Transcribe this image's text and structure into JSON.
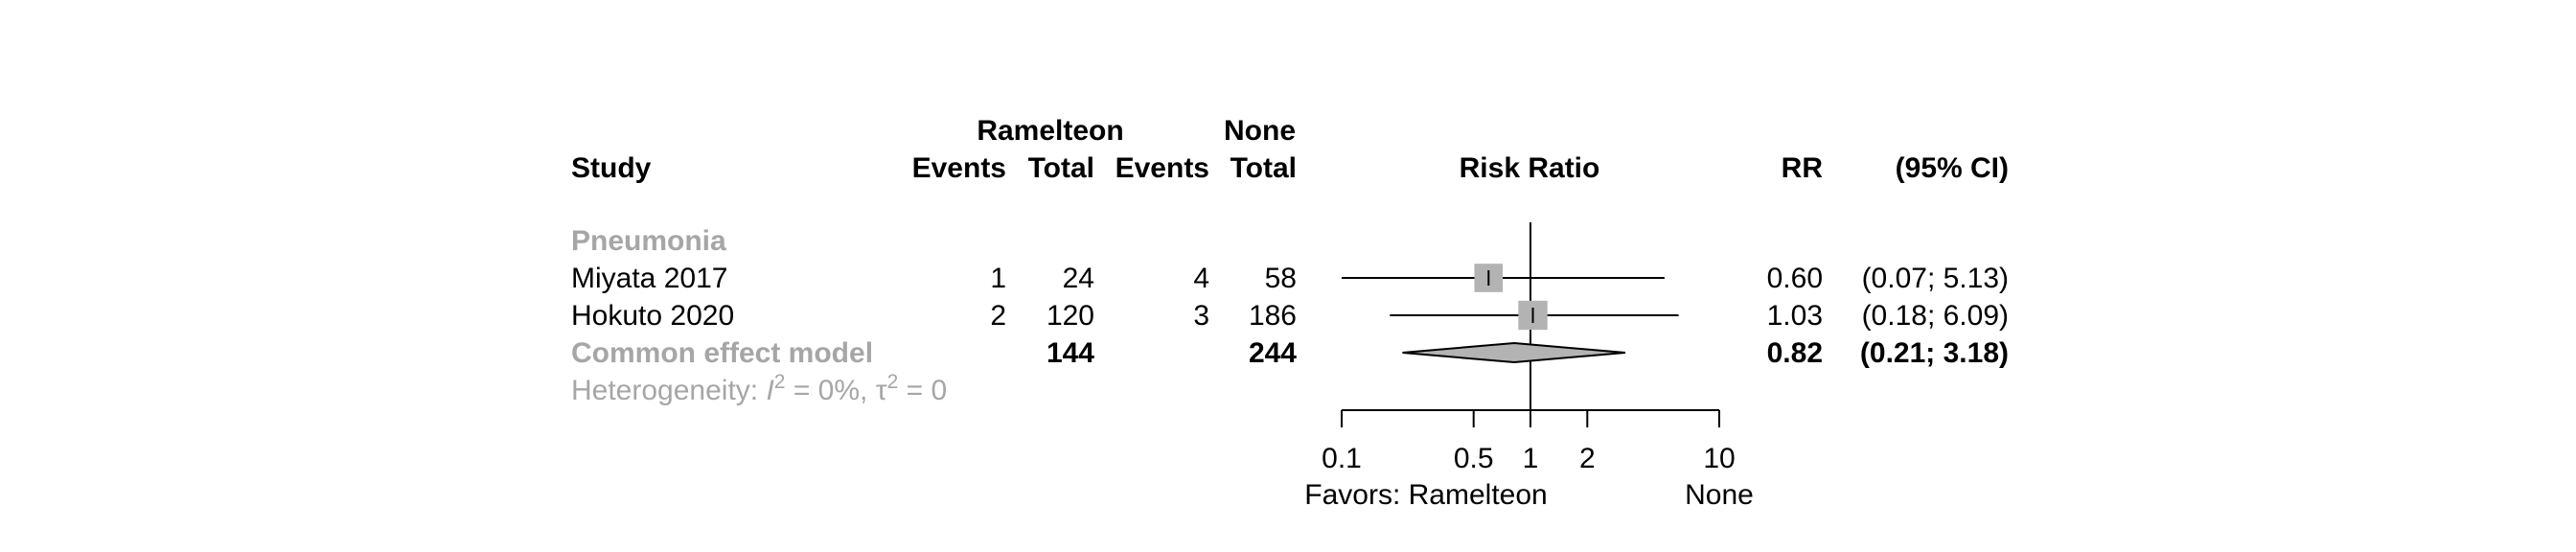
{
  "colors": {
    "text": "#000000",
    "subgroup": "#a6a6a6",
    "box": "#b3b3b3",
    "diamond": "#b3b3b3"
  },
  "headers": {
    "study": "Study",
    "group1": "Ramelteon",
    "group2": "None",
    "events": "Events",
    "total": "Total",
    "effect": "Risk Ratio",
    "rr": "RR",
    "ci": "(95% CI)"
  },
  "subgroup_label": "Pneumonia",
  "pooled": {
    "label": "Common effect model",
    "total1": "144",
    "total2": "244",
    "rr": "0.82",
    "ci": "(0.21; 3.18)"
  },
  "heterogeneity": {
    "prefix": "Heterogeneity: ",
    "i2_symbol": "I",
    "i2_exp": "2",
    "i2_value": " = 0%, ",
    "tau_symbol": "τ",
    "tau_exp": "2",
    "tau_value": " = 0"
  },
  "axis": {
    "favors_left": "Favors: Ramelteon",
    "favors_right": "None"
  },
  "chart_data": {
    "type": "forest",
    "measure": "Risk Ratio",
    "scale": "log",
    "xlim": [
      0.1,
      10
    ],
    "ticks": [
      0.1,
      0.5,
      1,
      2,
      10
    ],
    "tick_labels": [
      "0.1",
      "0.5",
      "1",
      "2",
      "10"
    ],
    "reference_line": 1,
    "studies": [
      {
        "study": "Miyata 2017",
        "events1": "1",
        "total1": "24",
        "events2": "4",
        "total2": "58",
        "rr_label": "0.60",
        "ci_label": "(0.07; 5.13)",
        "rr": 0.6,
        "lower": 0.07,
        "upper": 5.13,
        "weight": 0.45
      },
      {
        "study": "Hokuto 2020",
        "events1": "2",
        "total1": "120",
        "events2": "3",
        "total2": "186",
        "rr_label": "1.03",
        "ci_label": "(0.18; 6.09)",
        "rr": 1.03,
        "lower": 0.18,
        "upper": 6.09,
        "weight": 0.55
      }
    ],
    "pooled": {
      "rr": 0.82,
      "lower": 0.21,
      "upper": 3.18
    }
  }
}
